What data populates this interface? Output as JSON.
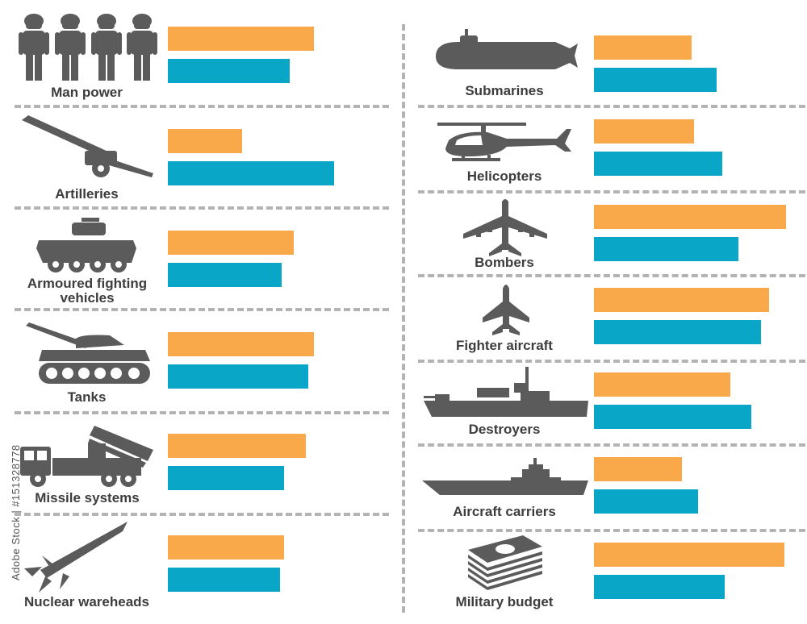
{
  "colors": {
    "series_a": "#f9a84a",
    "series_b": "#0aa6c7",
    "icon": "#5b5b5b",
    "divider": "#b3b3b3"
  },
  "watermark": "Adobe Stock | #151328778",
  "chart_data": {
    "type": "bar",
    "orientation": "horizontal",
    "title": "",
    "xlabel": "",
    "ylabel": "",
    "xlim": [
      0,
      100
    ],
    "legend": "none",
    "series": [
      {
        "color": "#f9a84a",
        "values": [
          73,
          37,
          63,
          73,
          69,
          58,
          51,
          52,
          100,
          91,
          71,
          46,
          99
        ]
      },
      {
        "color": "#0aa6c7",
        "values": [
          61,
          83,
          57,
          70,
          58,
          56,
          64,
          67,
          75,
          87,
          82,
          54,
          68
        ]
      }
    ],
    "categories": [
      {
        "label": "Man power",
        "icon": "soldiers-icon"
      },
      {
        "label": "Artilleries",
        "icon": "artillery-icon"
      },
      {
        "label": "Armoured fighting vehicles",
        "icon": "armoured-vehicle-icon"
      },
      {
        "label": "Tanks",
        "icon": "tank-icon"
      },
      {
        "label": "Missile systems",
        "icon": "missile-launcher-icon"
      },
      {
        "label": "Nuclear wareheads",
        "icon": "nuclear-missile-icon"
      },
      {
        "label": "Submarines",
        "icon": "submarine-icon"
      },
      {
        "label": "Helicopters",
        "icon": "helicopter-icon"
      },
      {
        "label": "Bombers",
        "icon": "bomber-icon"
      },
      {
        "label": "Fighter aircraft",
        "icon": "fighter-jet-icon"
      },
      {
        "label": "Destroyers",
        "icon": "destroyer-icon"
      },
      {
        "label": "Aircraft carriers",
        "icon": "aircraft-carrier-icon"
      },
      {
        "label": "Military budget",
        "icon": "money-stack-icon"
      }
    ]
  }
}
